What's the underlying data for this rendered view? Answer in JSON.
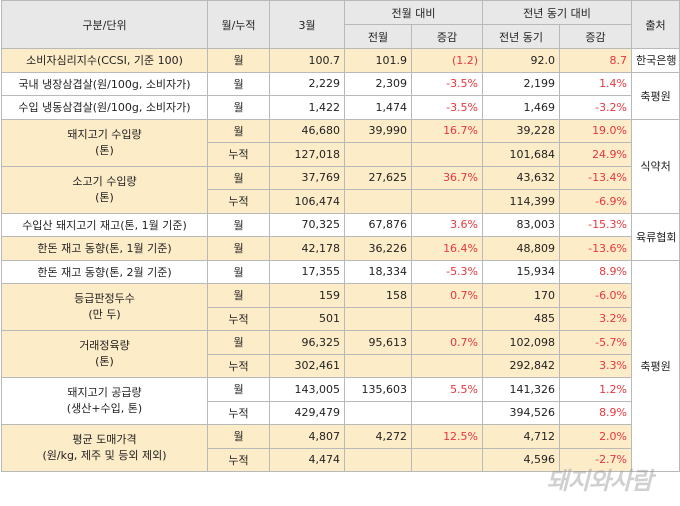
{
  "header": {
    "category": "구분/단위",
    "period": "월/누적",
    "month": "3월",
    "mom_group": "전월 대비",
    "yoy_group": "전년 동기 대비",
    "source": "출처",
    "prev_month": "전월",
    "change": "증감",
    "prev_year": "전년 동기",
    "change2": "증감"
  },
  "rows": [
    {
      "name": "소비자심리지수(CCSI, 기준 100)",
      "period": "월",
      "cur": "100.7",
      "prev": "101.9",
      "mom": "(1.2)",
      "ly": "92.0",
      "yoy": "8.7",
      "src": "한국은행"
    },
    {
      "name": "국내 냉장삼겹살(원/100g, 소비자가)",
      "period": "월",
      "cur": "2,229",
      "prev": "2,309",
      "mom": "-3.5%",
      "ly": "2,199",
      "yoy": "1.4%",
      "src": "축평원"
    },
    {
      "name": "수입 냉동삼겹살(원/100g, 소비자가)",
      "period": "월",
      "cur": "1,422",
      "prev": "1,474",
      "mom": "-3.5%",
      "ly": "1,469",
      "yoy": "-3.2%"
    },
    {
      "name": "돼지고기 수입량",
      "name2": "(톤)",
      "period": "월",
      "cur": "46,680",
      "prev": "39,990",
      "mom": "16.7%",
      "ly": "39,228",
      "yoy": "19.0%",
      "src": "식약처"
    },
    {
      "period": "누적",
      "cur": "127,018",
      "prev": "",
      "mom": "",
      "ly": "101,684",
      "yoy": "24.9%"
    },
    {
      "name": "소고기 수입량",
      "name2": "(톤)",
      "period": "월",
      "cur": "37,769",
      "prev": "27,625",
      "mom": "36.7%",
      "ly": "43,632",
      "yoy": "-13.4%"
    },
    {
      "period": "누적",
      "cur": "106,474",
      "prev": "",
      "mom": "",
      "ly": "114,399",
      "yoy": "-6.9%"
    },
    {
      "name": "수입산 돼지고기 재고(톤, 1월 기준)",
      "period": "월",
      "cur": "70,325",
      "prev": "67,876",
      "mom": "3.6%",
      "ly": "83,003",
      "yoy": "-15.3%",
      "src": "육류협회"
    },
    {
      "name": "한돈 재고 동향(톤, 1월 기준)",
      "period": "월",
      "cur": "42,178",
      "prev": "36,226",
      "mom": "16.4%",
      "ly": "48,809",
      "yoy": "-13.6%"
    },
    {
      "name": "한돈 재고 동향(톤, 2월 기준)",
      "period": "월",
      "cur": "17,355",
      "prev": "18,334",
      "mom": "-5.3%",
      "ly": "15,934",
      "yoy": "8.9%",
      "src": "축평원"
    },
    {
      "name": "등급판정두수",
      "name2": "(만 두)",
      "period": "월",
      "cur": "159",
      "prev": "158",
      "mom": "0.7%",
      "ly": "170",
      "yoy": "-6.0%"
    },
    {
      "period": "누적",
      "cur": "501",
      "prev": "",
      "mom": "",
      "ly": "485",
      "yoy": "3.2%"
    },
    {
      "name": "거래정육량",
      "name2": "(톤)",
      "period": "월",
      "cur": "96,325",
      "prev": "95,613",
      "mom": "0.7%",
      "ly": "102,098",
      "yoy": "-5.7%"
    },
    {
      "period": "누적",
      "cur": "302,461",
      "prev": "",
      "mom": "",
      "ly": "292,842",
      "yoy": "3.3%"
    },
    {
      "name": "돼지고기 공급량",
      "name2": "(생산+수입, 톤)",
      "period": "월",
      "cur": "143,005",
      "prev": "135,603",
      "mom": "5.5%",
      "ly": "141,326",
      "yoy": "1.2%"
    },
    {
      "period": "누적",
      "cur": "429,479",
      "prev": "",
      "mom": "",
      "ly": "394,526",
      "yoy": "8.9%"
    },
    {
      "name": "평균 도매가격",
      "name2": "(원/kg, 제주 및 등외 제외)",
      "period": "월",
      "cur": "4,807",
      "prev": "4,272",
      "mom": "12.5%",
      "ly": "4,712",
      "yoy": "2.0%"
    },
    {
      "period": "누적",
      "cur": "4,474",
      "prev": "",
      "mom": "",
      "ly": "4,596",
      "yoy": "-2.7%"
    }
  ],
  "watermark": "돼지와사람"
}
